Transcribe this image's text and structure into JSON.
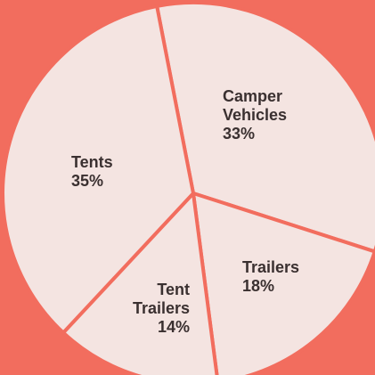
{
  "chart_data": {
    "type": "pie",
    "categories": [
      "Camper Vehicles",
      "Trailers",
      "Tent Trailers",
      "Tents"
    ],
    "values": [
      33,
      18,
      14,
      35
    ],
    "value_labels": [
      "33%",
      "18%",
      "14%",
      "35%"
    ],
    "color": "#f4e4e1",
    "background": "#f26d5e"
  }
}
